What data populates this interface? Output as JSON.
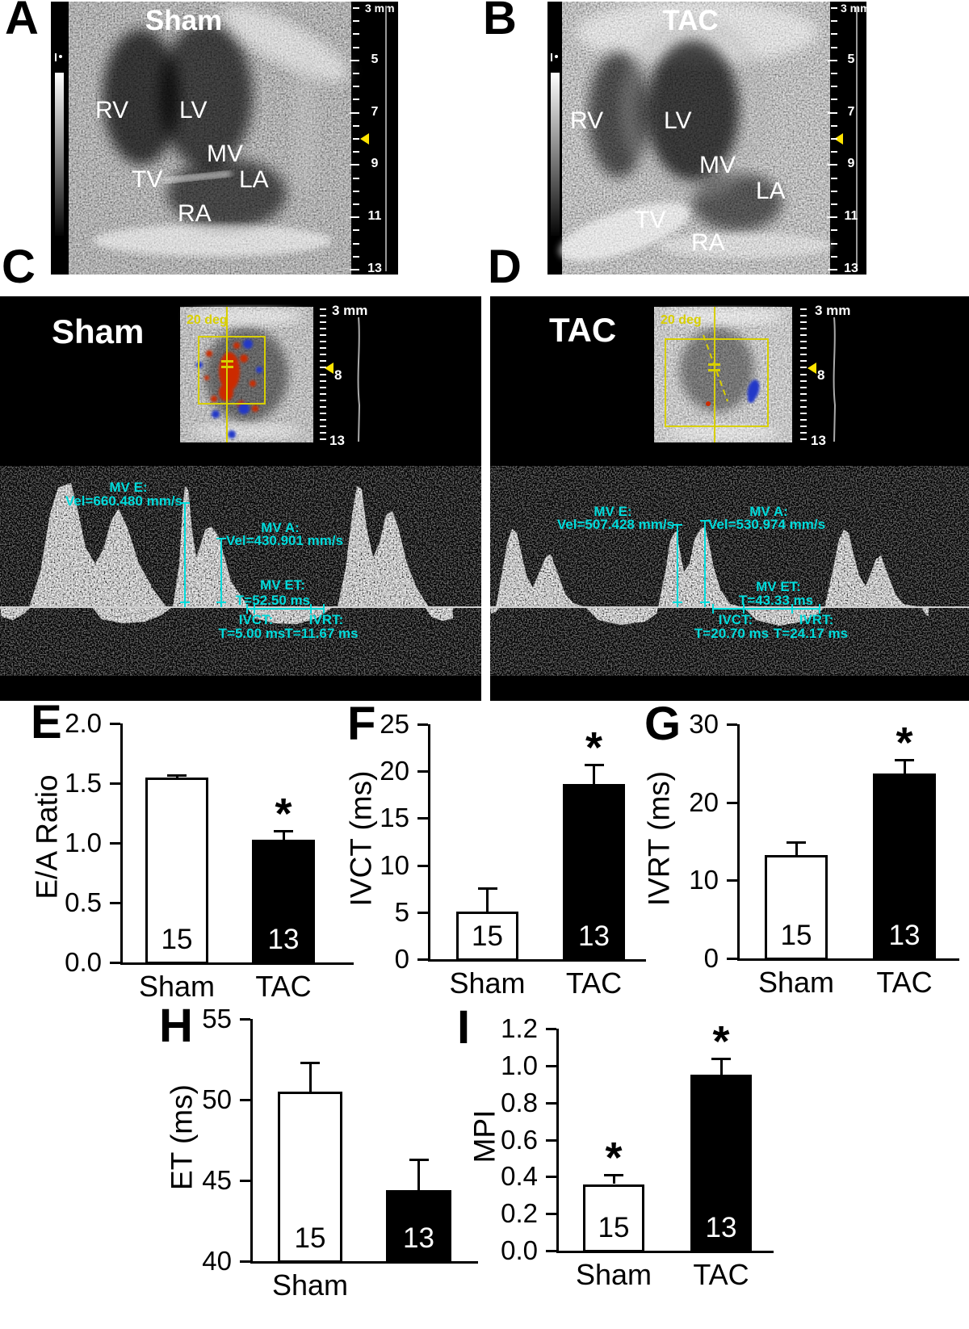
{
  "panel_letters": {
    "a": "A",
    "b": "B",
    "c": "C",
    "d": "D",
    "e": "E",
    "f": "F",
    "g": "G",
    "h": "H",
    "i": "I"
  },
  "sig_symbol": "*",
  "colors": {
    "annotation_cyan": "#00dbdb",
    "marker_yellow": "#ffe400",
    "roi_yellow": "#d8cf00",
    "bar_white": "#ffffff",
    "bar_black": "#000000"
  },
  "ultrasound": {
    "a": {
      "title": "Sham",
      "anatomy": {
        "rv": "RV",
        "lv": "LV",
        "mv": "MV",
        "tv": "TV",
        "la": "LA",
        "ra": "RA"
      },
      "ruler": {
        "unit_label": "3 mm",
        "numbers": [
          "5",
          "7",
          "9",
          "11",
          "13"
        ]
      }
    },
    "b": {
      "title": "TAC",
      "anatomy": {
        "rv": "RV",
        "lv": "LV",
        "mv": "MV",
        "tv": "TV",
        "la": "LA",
        "ra": "RA"
      },
      "ruler": {
        "unit_label": "3 mm",
        "numbers": [
          "5",
          "7",
          "9",
          "11",
          "13"
        ]
      }
    }
  },
  "doppler": {
    "c": {
      "title": "Sham",
      "angle_label": "20 deg",
      "ruler": {
        "unit_label": "3 mm",
        "marker_label": "8",
        "end_label": "13"
      },
      "measurements": {
        "mv_e": {
          "label": "MV E:",
          "value": "Vel=660.480 mm/s"
        },
        "mv_a": {
          "label": "MV A:",
          "value": "Vel=430.901 mm/s"
        },
        "mv_et": {
          "label": "MV ET:",
          "value": "T=52.50 ms"
        },
        "ivct": {
          "label": "IVCT:",
          "value": "T=5.00 ms"
        },
        "ivrt": {
          "label": "IVRT:",
          "value": "T=11.67 ms"
        }
      }
    },
    "d": {
      "title": "TAC",
      "angle_label": "20 deg",
      "ruler": {
        "unit_label": "3 mm",
        "marker_label": "8",
        "end_label": "13"
      },
      "measurements": {
        "mv_e": {
          "label": "MV E:",
          "value": "Vel=507.428 mm/s"
        },
        "mv_a": {
          "label": "MV A:",
          "value": "Vel=530.974 mm/s"
        },
        "mv_et": {
          "label": "MV ET:",
          "value": "T=43.33 ms"
        },
        "ivct": {
          "label": "IVCT:",
          "value": "T=20.70 ms"
        },
        "ivrt": {
          "label": "IVRT:",
          "value": "T=24.17 ms"
        }
      }
    }
  },
  "chart_data": [
    {
      "id": "E",
      "type": "bar",
      "ylabel": "E/A Ratio",
      "categories": [
        "Sham",
        "TAC"
      ],
      "values": [
        1.55,
        1.03
      ],
      "errors": [
        0.02,
        0.07
      ],
      "n": [
        15,
        13
      ],
      "significance": [
        false,
        true
      ],
      "yticks": [
        "2.0",
        "1.5",
        "1.0",
        "0.5",
        "0.0"
      ],
      "ylim": [
        0,
        2.0
      ],
      "bar_fills": [
        "white",
        "black"
      ]
    },
    {
      "id": "F",
      "type": "bar",
      "ylabel": "IVCT (ms)",
      "categories": [
        "Sham",
        "TAC"
      ],
      "values": [
        5.1,
        18.6
      ],
      "errors": [
        2.5,
        2.1
      ],
      "n": [
        15,
        13
      ],
      "significance": [
        false,
        true
      ],
      "yticks": [
        "25",
        "20",
        "15",
        "10",
        "5",
        "0"
      ],
      "ylim": [
        0,
        25
      ],
      "bar_fills": [
        "white",
        "black"
      ]
    },
    {
      "id": "G",
      "type": "bar",
      "ylabel": "IVRT (ms)",
      "categories": [
        "Sham",
        "TAC"
      ],
      "values": [
        13.2,
        23.7
      ],
      "errors": [
        1.7,
        1.7
      ],
      "n": [
        15,
        13
      ],
      "significance": [
        false,
        true
      ],
      "yticks": [
        "30",
        "20",
        "10",
        "0"
      ],
      "ylim": [
        0,
        30
      ],
      "bar_fills": [
        "white",
        "black"
      ]
    },
    {
      "id": "H",
      "type": "bar",
      "ylabel": "ET (ms)",
      "categories": [
        "Sham",
        ""
      ],
      "values": [
        50.5,
        44.4
      ],
      "errors": [
        1.8,
        1.9
      ],
      "n": [
        15,
        13
      ],
      "significance": [
        false,
        false
      ],
      "yticks": [
        "55",
        "50",
        "45",
        "40"
      ],
      "ylim": [
        40,
        55
      ],
      "bar_fills": [
        "white",
        "black"
      ]
    },
    {
      "id": "I",
      "type": "bar",
      "ylabel": "MPI",
      "categories": [
        "Sham",
        "TAC"
      ],
      "values": [
        0.36,
        0.95
      ],
      "errors": [
        0.05,
        0.09
      ],
      "n": [
        15,
        13
      ],
      "significance": [
        true,
        true
      ],
      "yticks": [
        "1.2",
        "1.0",
        "0.8",
        "0.6",
        "0.4",
        "0.2",
        "0.0"
      ],
      "ylim": [
        0,
        1.2
      ],
      "bar_fills": [
        "white",
        "black"
      ]
    }
  ]
}
